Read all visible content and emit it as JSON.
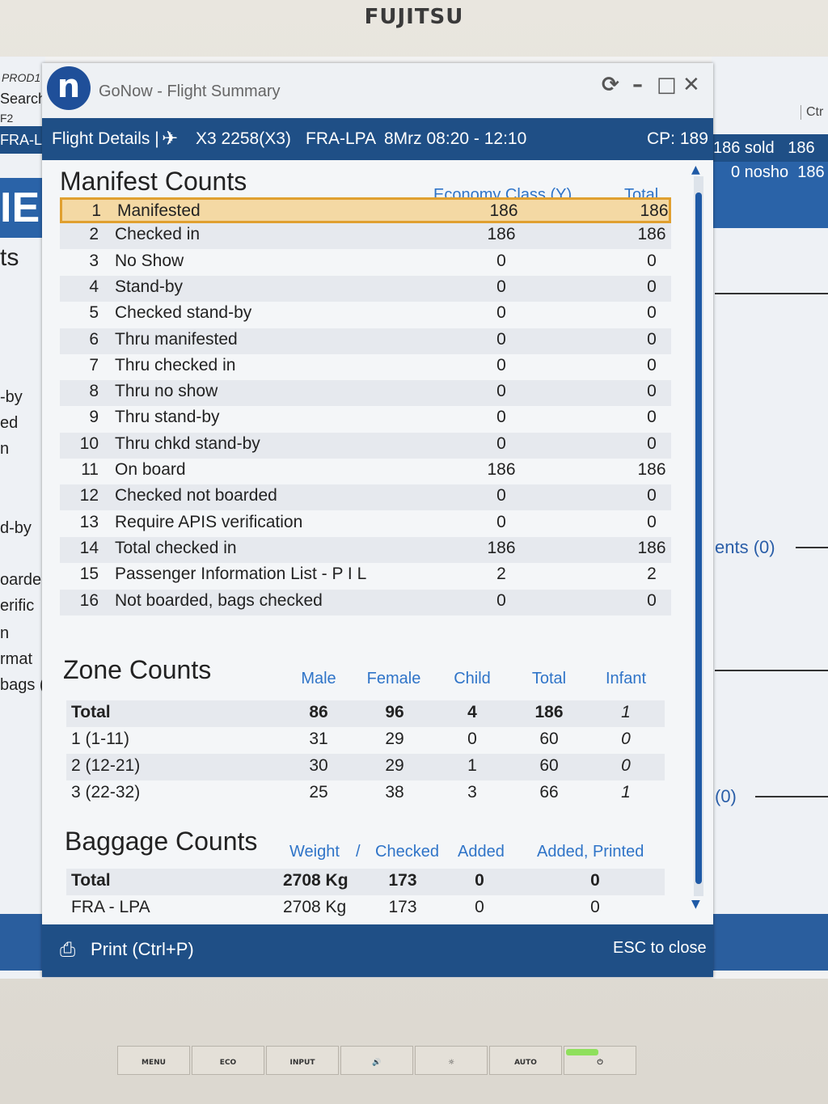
{
  "monitor": {
    "brand": "FUJITSU",
    "buttons": [
      "MENU",
      "ECO",
      "INPUT",
      "🔊",
      "☼",
      "AUTO",
      "⏻"
    ]
  },
  "background_app": {
    "env": "PROD1",
    "search": "Search",
    "f2": "F2",
    "flight_tab": "FRA-L",
    "ie": "IE",
    "ts": "ts",
    "left_fragments": [
      "-by",
      "ed",
      "n",
      "d-by",
      "oarde",
      "erific",
      "n",
      "rmat",
      "bags ("
    ],
    "ctr": "Ctr",
    "sold": "186 sold",
    "sold2": "186",
    "nosho": "0 nosho",
    "nosho2": "186",
    "ents": "ents (0)",
    "zero": "(0)"
  },
  "window": {
    "title": "GoNow - Flight Summary",
    "flight_details": "Flight Details |",
    "airline_icon": "plane-icon",
    "flight": "X3 2258(X3)",
    "route": "FRA-LPA",
    "date_time": "8Mrz 08:20 - 12:10",
    "cp": "CP: 189"
  },
  "manifest": {
    "title": "Manifest Counts",
    "col_class": "Economy Class (Y)",
    "col_total": "Total",
    "rows": [
      {
        "n": "1",
        "label": "Manifested",
        "y": "186",
        "total": "186"
      },
      {
        "n": "2",
        "label": "Checked in",
        "y": "186",
        "total": "186"
      },
      {
        "n": "3",
        "label": "No Show",
        "y": "0",
        "total": "0"
      },
      {
        "n": "4",
        "label": "Stand-by",
        "y": "0",
        "total": "0"
      },
      {
        "n": "5",
        "label": "Checked stand-by",
        "y": "0",
        "total": "0"
      },
      {
        "n": "6",
        "label": "Thru manifested",
        "y": "0",
        "total": "0"
      },
      {
        "n": "7",
        "label": "Thru checked in",
        "y": "0",
        "total": "0"
      },
      {
        "n": "8",
        "label": "Thru no show",
        "y": "0",
        "total": "0"
      },
      {
        "n": "9",
        "label": "Thru stand-by",
        "y": "0",
        "total": "0"
      },
      {
        "n": "10",
        "label": "Thru chkd stand-by",
        "y": "0",
        "total": "0"
      },
      {
        "n": "11",
        "label": "On board",
        "y": "186",
        "total": "186"
      },
      {
        "n": "12",
        "label": "Checked not boarded",
        "y": "0",
        "total": "0"
      },
      {
        "n": "13",
        "label": "Require APIS verification",
        "y": "0",
        "total": "0"
      },
      {
        "n": "14",
        "label": "Total checked in",
        "y": "186",
        "total": "186"
      },
      {
        "n": "15",
        "label": "Passenger Information List - P I L",
        "y": "2",
        "total": "2"
      },
      {
        "n": "16",
        "label": "Not boarded, bags checked",
        "y": "0",
        "total": "0"
      }
    ]
  },
  "zones": {
    "title": "Zone Counts",
    "headers": [
      "Male",
      "Female",
      "Child",
      "Total",
      "Infant"
    ],
    "rows": [
      {
        "label": "Total",
        "male": "86",
        "female": "96",
        "child": "4",
        "total": "186",
        "infant": "1"
      },
      {
        "label": "1 (1-11)",
        "male": "31",
        "female": "29",
        "child": "0",
        "total": "60",
        "infant": "0"
      },
      {
        "label": "2 (12-21)",
        "male": "30",
        "female": "29",
        "child": "1",
        "total": "60",
        "infant": "0"
      },
      {
        "label": "3 (22-32)",
        "male": "25",
        "female": "38",
        "child": "3",
        "total": "66",
        "infant": "1"
      }
    ]
  },
  "baggage": {
    "title": "Baggage Counts",
    "headers": {
      "weight": "Weight",
      "slash": "/",
      "checked": "Checked",
      "added": "Added",
      "added_printed": "Added, Printed"
    },
    "rows": [
      {
        "label": "Total",
        "weight": "2708 Kg",
        "checked": "173",
        "added": "0",
        "added_printed": "0"
      },
      {
        "label": "FRA - LPA",
        "weight": "2708 Kg",
        "checked": "173",
        "added": "0",
        "added_printed": "0"
      }
    ]
  },
  "footer": {
    "print": "Print (Ctrl+P)",
    "close": "ESC to close"
  }
}
